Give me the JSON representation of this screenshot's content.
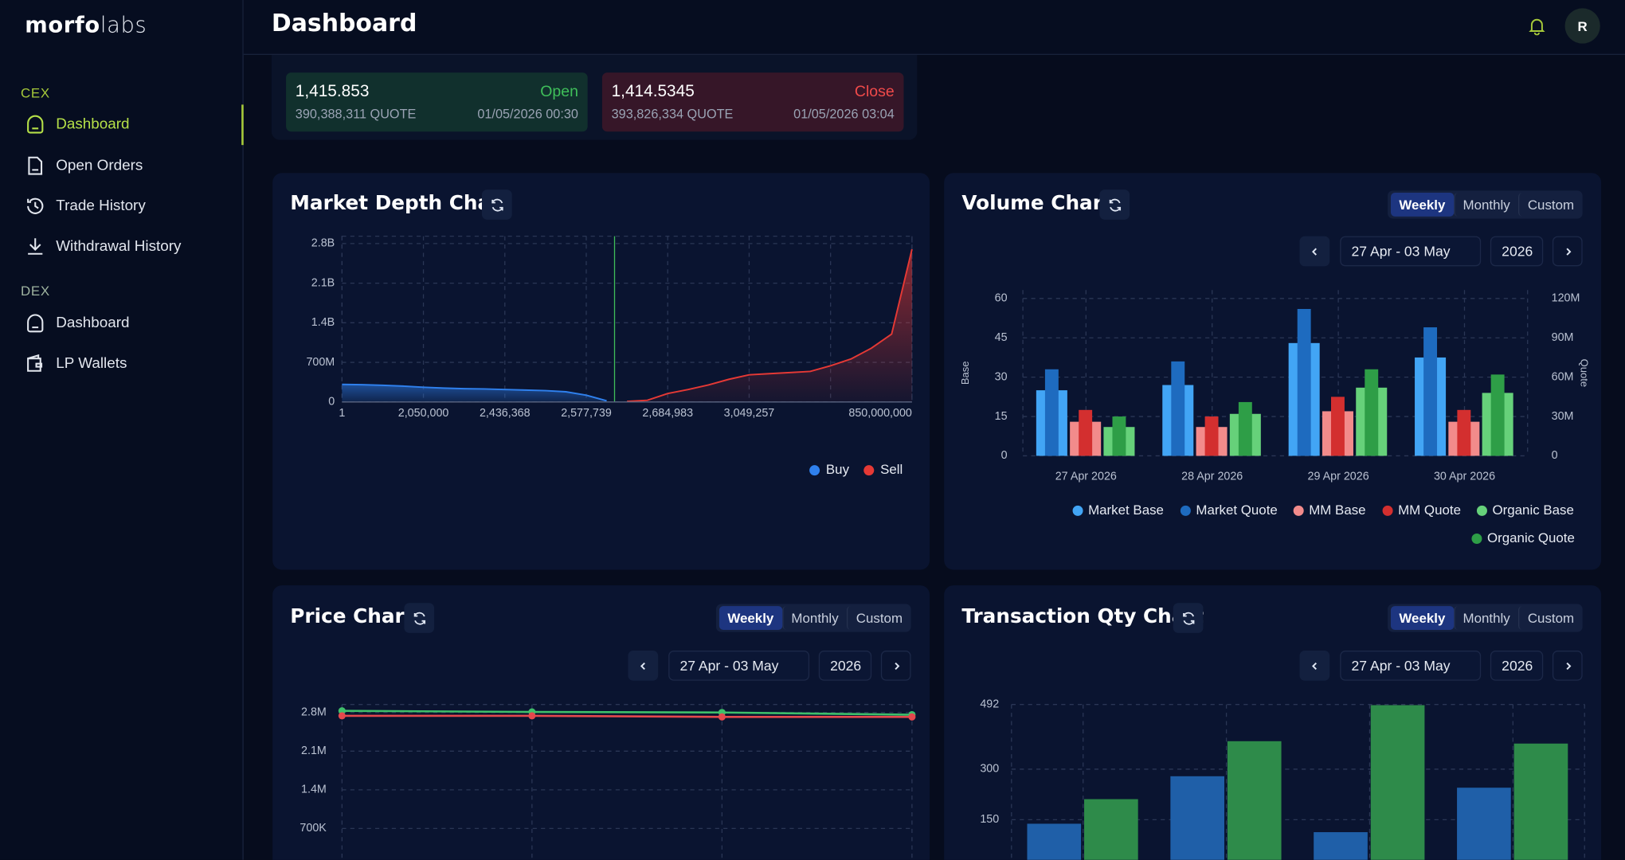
{
  "sidebar": {
    "brand": {
      "bold": "morfo",
      "light": "labs"
    },
    "sections": [
      {
        "label": "CEX",
        "items": [
          "Dashboard",
          "Open Orders",
          "Trade History",
          "Withdrawal History"
        ]
      },
      {
        "label": "DEX",
        "items": [
          "Dashboard",
          "LP Wallets"
        ]
      }
    ]
  },
  "header": {
    "title": "Dashboard",
    "avatar": "R"
  },
  "summary": {
    "open": {
      "price": "1,415.853",
      "label": "Open",
      "quote": "390,388,311 QUOTE",
      "time": "01/05/2026 00:30"
    },
    "close": {
      "price": "1,414.5345",
      "label": "Close",
      "quote": "393,826,334 QUOTE",
      "time": "01/05/2026 03:04"
    }
  },
  "chart_data": [
    {
      "type": "area",
      "title": "Market Depth Chart",
      "categories": [
        "1",
        null,
        null,
        null,
        "2,050,000",
        null,
        null,
        null,
        "2,436,368",
        null,
        null,
        null,
        "2,577,739",
        null,
        null,
        null,
        "2,684,983",
        null,
        null,
        null,
        "3,049,257",
        null,
        null,
        null,
        null,
        null,
        null,
        null,
        "850,000,000"
      ],
      "series": [
        {
          "name": "Buy",
          "color": "#2f80ed",
          "values": [
            310000000,
            305000000,
            295000000,
            280000000,
            260000000,
            245000000,
            235000000,
            230000000,
            220000000,
            210000000,
            200000000,
            180000000,
            120000000,
            20000000,
            null,
            null,
            null,
            null,
            null,
            null,
            null,
            null,
            null,
            null,
            null,
            null,
            null,
            null,
            null
          ]
        },
        {
          "name": "Sell",
          "color": "#e53935",
          "values": [
            null,
            null,
            null,
            null,
            null,
            null,
            null,
            null,
            null,
            null,
            null,
            null,
            null,
            null,
            10000000,
            30000000,
            150000000,
            220000000,
            300000000,
            400000000,
            480000000,
            500000000,
            520000000,
            540000000,
            640000000,
            760000000,
            950000000,
            1200000000,
            2700000000
          ]
        }
      ],
      "ylim": [
        0,
        2930000000
      ],
      "yticks": [
        0,
        {
          "value": 700000000,
          "label": "700M"
        },
        {
          "value": 1400000000,
          "label": "1.4B"
        },
        {
          "value": 2100000000,
          "label": "2.1B"
        },
        {
          "value": 2800000000,
          "label": "2.8B"
        }
      ],
      "grid": true,
      "legend": "bottom-right"
    },
    {
      "type": "bar",
      "title": "Volume Chart",
      "tabs": [
        "Weekly",
        "Monthly",
        "Custom"
      ],
      "active_tab": 0,
      "date_range": "27 Apr - 03 May",
      "year": "2026",
      "categories": [
        "27 Apr 2026",
        "28 Apr 2026",
        "29 Apr 2026",
        "30 Apr 2026"
      ],
      "ylabel": "Base",
      "y2label": "Quote",
      "series": [
        {
          "name": "Market Base",
          "color": "#42a5f5",
          "values": [
            25,
            27,
            43,
            37.5
          ]
        },
        {
          "name": "Market Quote",
          "color": "#1e6bbf",
          "axis": "y2",
          "values": [
            66000000,
            72000000,
            112000000,
            98000000
          ]
        },
        {
          "name": "MM Base",
          "color": "#f28b8b",
          "values": [
            13,
            11,
            17,
            13
          ]
        },
        {
          "name": "MM Quote",
          "color": "#d32f2f",
          "axis": "y2",
          "values": [
            35000000,
            30000000,
            45000000,
            35000000
          ]
        },
        {
          "name": "Organic Base",
          "color": "#66d17a",
          "values": [
            11,
            16,
            26,
            24
          ]
        },
        {
          "name": "Organic Quote",
          "color": "#2e9e47",
          "axis": "y2",
          "values": [
            30000000,
            41000000,
            66000000,
            62000000
          ]
        }
      ],
      "ylim": [
        0,
        63.2
      ],
      "yticks": [
        0,
        15,
        30,
        45,
        60
      ],
      "y2lim": [
        0,
        126400000
      ],
      "y2ticks": [
        0,
        {
          "value": 30000000,
          "label": "30M"
        },
        {
          "value": 60000000,
          "label": "60M"
        },
        {
          "value": 90000000,
          "label": "90M"
        },
        {
          "value": 120000000,
          "label": "120M"
        }
      ],
      "grid": true
    },
    {
      "type": "line",
      "title": "Price Chart",
      "tabs": [
        "Weekly",
        "Monthly",
        "Custom"
      ],
      "active_tab": 0,
      "date_range": "27 Apr - 03 May",
      "year": "2026",
      "categories": [
        null,
        null,
        null,
        null
      ],
      "series": [
        {
          "color": "#3fbf6a",
          "values": [
            2830000,
            2810000,
            2800000,
            2760000
          ]
        },
        {
          "color": "#e5484d",
          "values": [
            2740000,
            2740000,
            2720000,
            2720000
          ]
        }
      ],
      "ylim": [
        0,
        2945000
      ],
      "yticks": [
        {
          "value": 700000,
          "label": "700K"
        },
        {
          "value": 1400000,
          "label": "1.4M"
        },
        {
          "value": 2100000,
          "label": "2.1M"
        },
        {
          "value": 2800000,
          "label": "2.8M"
        }
      ],
      "grid": true
    },
    {
      "type": "bar",
      "title": "Transaction Qty Chart",
      "tabs": [
        "Weekly",
        "Monthly",
        "Custom"
      ],
      "active_tab": 0,
      "date_range": "27 Apr - 03 May",
      "year": "2026",
      "categories": [
        null,
        null,
        null,
        null
      ],
      "series": [
        {
          "color": "#1f5fa8",
          "values": [
            138,
            279,
            113,
            245
          ]
        },
        {
          "color": "#2e8b4a",
          "values": [
            211,
            383,
            490,
            376
          ]
        }
      ],
      "ylim": [
        0,
        492
      ],
      "yticks": [
        150,
        300,
        492
      ],
      "grid": true
    }
  ]
}
